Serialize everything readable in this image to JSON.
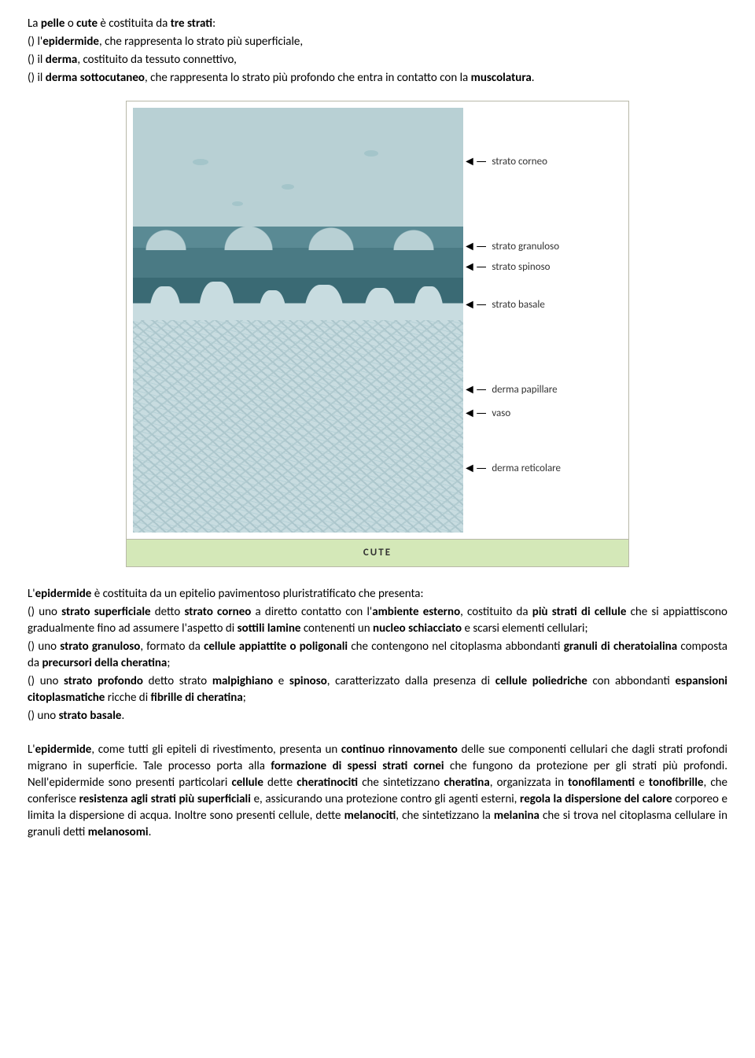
{
  "intro": {
    "line1_pre": "La ",
    "line1_b1": "pelle",
    "line1_mid1": " o ",
    "line1_b2": "cute",
    "line1_mid2": " è costituita da ",
    "line1_b3": "tre strati",
    "line1_post": ":",
    "bullet1_pre": "() l'",
    "bullet1_b": "epidermide",
    "bullet1_post": ", che rappresenta lo strato più superficiale,",
    "bullet2_pre": "() il ",
    "bullet2_b": "derma",
    "bullet2_post": ", costituito da tessuto connettivo,",
    "bullet3_pre": "() il ",
    "bullet3_b": "derma sottocutaneo",
    "bullet3_mid": ", che rappresenta lo strato più profondo che entra in contatto con la ",
    "bullet3_b2": "muscolatura",
    "bullet3_post": "."
  },
  "figure": {
    "labels": {
      "l1": "strato corneo",
      "l2": "strato granuloso",
      "l3": "strato spinoso",
      "l4": "strato basale",
      "l5": "derma papillare",
      "l6": "vaso",
      "l7": "derma reticolare"
    },
    "caption": "CUTE"
  },
  "epidermis": {
    "p1_pre": "L'",
    "p1_b1": "epidermide",
    "p1_mid": " è costituita da un epitelio pavimentoso pluristratificato che presenta:",
    "b1_pre": "() uno ",
    "b1_b1": "strato superficiale",
    "b1_mid1": " detto ",
    "b1_b2": "strato corneo",
    "b1_mid2": " a diretto contatto con l'",
    "b1_b3": "ambiente esterno",
    "b1_mid3": ", costituito da ",
    "b1_b4": "più strati di cellule",
    "b1_mid4": " che si appiattiscono gradualmente fino ad assumere l'aspetto di ",
    "b1_b5": "sottili lamine",
    "b1_mid5": " contenenti un ",
    "b1_b6": "nucleo schiacciato",
    "b1_post": " e scarsi elementi cellulari;",
    "b2_pre": "() uno ",
    "b2_b1": "strato granuloso",
    "b2_mid1": ", formato da ",
    "b2_b2": "cellule appiattite o poligonali",
    "b2_mid2": " che contengono nel citoplasma abbondanti ",
    "b2_b3": "granuli di cheratoialina",
    "b2_mid3": " composta da ",
    "b2_b4": "precursori della cheratina",
    "b2_post": ";",
    "b3_pre": "() uno ",
    "b3_b1": "strato profondo",
    "b3_mid1": " detto strato ",
    "b3_b2": "malpighiano",
    "b3_mid2": " e ",
    "b3_b3": "spinoso",
    "b3_mid3": ", caratterizzato dalla presenza di ",
    "b3_b4": "cellule poliedriche",
    "b3_mid4": " con abbondanti ",
    "b3_b5": "espansioni citoplasmatiche",
    "b3_mid5": " ricche di ",
    "b3_b6": "fibrille di cheratina",
    "b3_post": ";",
    "b4_pre": "() uno ",
    "b4_b1": "strato basale",
    "b4_post": "."
  },
  "para2": {
    "pre": "L'",
    "b1": "epidermide",
    "t1": ", come tutti gli epiteli di rivestimento, presenta un ",
    "b2": "continuo rinnovamento",
    "t2": " delle sue componenti cellulari che dagli strati profondi migrano in superficie. Tale processo porta alla ",
    "b3": "formazione di spessi strati cornei",
    "t3": " che fungono da protezione per gli strati più profondi. Nell'epidermide sono presenti particolari ",
    "b4": "cellule",
    "t4": " dette ",
    "b5": "cheratinociti",
    "t5": " che sintetizzano ",
    "b6": "cheratina",
    "t6": ", organizzata in ",
    "b7": "tonofilamenti",
    "t7": " e ",
    "b8": "tonofibrille",
    "t8": ", che conferisce ",
    "b9": "resistenza agli strati più superficiali",
    "t9": " e, assicurando una protezione contro gli agenti esterni, ",
    "b10": "regola la dispersione del calore",
    "t10": " corporeo e limita la dispersione di acqua. Inoltre sono presenti cellule, dette ",
    "b11": "melanociti",
    "t11": ", che sintetizzano la ",
    "b12": "melanina",
    "t12": " che si trova nel citoplasma cellulare in granuli detti ",
    "b13": "melanosomi",
    "t13": "."
  }
}
